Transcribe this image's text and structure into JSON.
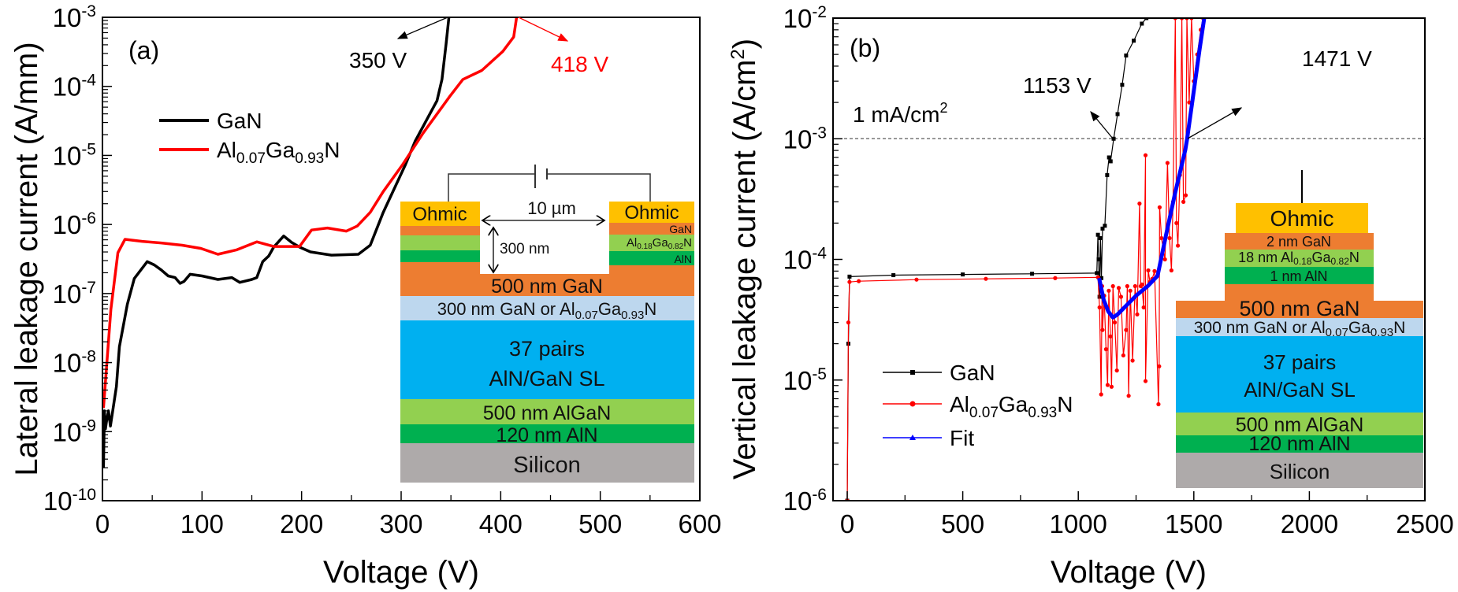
{
  "chart_data": [
    {
      "panel_label": "(a)",
      "type": "line",
      "xlabel": "Voltage (V)",
      "ylabel": "Lateral leakage current (A/mm)",
      "xlim": [
        0,
        600
      ],
      "ylim": [
        1e-10,
        0.001
      ],
      "yscale": "log",
      "grid": false,
      "legend_position": "upper-left",
      "xticks": [
        "0",
        "100",
        "200",
        "300",
        "400",
        "500",
        "600"
      ],
      "yticks": [
        {
          "base": "10",
          "exp": "-10"
        },
        {
          "base": "10",
          "exp": "-9"
        },
        {
          "base": "10",
          "exp": "-8"
        },
        {
          "base": "10",
          "exp": "-7"
        },
        {
          "base": "10",
          "exp": "-6"
        },
        {
          "base": "10",
          "exp": "-5"
        },
        {
          "base": "10",
          "exp": "-4"
        },
        {
          "base": "10",
          "exp": "-3"
        }
      ],
      "series": [
        {
          "name_parts": [
            "GaN"
          ],
          "color": "#000000",
          "points": [
            [
              1,
              3e-10
            ],
            [
              2,
              2e-09
            ],
            [
              3,
              1.1e-09
            ],
            [
              4,
              1.4e-09
            ],
            [
              6,
              2e-09
            ],
            [
              8,
              1.2e-09
            ],
            [
              14,
              4.5e-09
            ],
            [
              17,
              1.7e-08
            ],
            [
              25,
              7e-08
            ],
            [
              32,
              1.65e-07
            ],
            [
              45,
              2.9e-07
            ],
            [
              52,
              2.6e-07
            ],
            [
              59,
              2.2e-07
            ],
            [
              66,
              1.8e-07
            ],
            [
              73,
              1.7e-07
            ],
            [
              78,
              1.4e-07
            ],
            [
              82,
              1.5e-07
            ],
            [
              88,
              1.9e-07
            ],
            [
              100,
              1.8e-07
            ],
            [
              116,
              1.6e-07
            ],
            [
              130,
              1.7e-07
            ],
            [
              138,
              1.45e-07
            ],
            [
              150,
              1.6e-07
            ],
            [
              155,
              1.7e-07
            ],
            [
              161,
              2.9e-07
            ],
            [
              167,
              3.5e-07
            ],
            [
              172,
              4.7e-07
            ],
            [
              182,
              6.8e-07
            ],
            [
              190,
              5.5e-07
            ],
            [
              198,
              4.7e-07
            ],
            [
              209,
              4e-07
            ],
            [
              230,
              3.6e-07
            ],
            [
              257,
              3.7e-07
            ],
            [
              269,
              5e-07
            ],
            [
              282,
              1.5e-06
            ],
            [
              304,
              7.2e-06
            ],
            [
              314,
              1.6e-05
            ],
            [
              330,
              4.3e-05
            ],
            [
              336,
              6.2e-05
            ],
            [
              341,
              0.000126
            ],
            [
              345,
              0.0004
            ],
            [
              348,
              0.001
            ]
          ]
        },
        {
          "name_parts": [
            "Al",
            "0.07",
            "Ga",
            "0.93",
            "N"
          ],
          "color": "#FF0000",
          "points": [
            [
              1,
              2.2e-09
            ],
            [
              8.5,
              5.9e-08
            ],
            [
              15.5,
              3.9e-07
            ],
            [
              22.6,
              6.1e-07
            ],
            [
              40,
              5.7e-07
            ],
            [
              59,
              5.4e-07
            ],
            [
              80,
              5e-07
            ],
            [
              99,
              4.5e-07
            ],
            [
              116,
              3.7e-07
            ],
            [
              135,
              4.3e-07
            ],
            [
              155,
              5.6e-07
            ],
            [
              172,
              4.8e-07
            ],
            [
              198,
              4.8e-07
            ],
            [
              210,
              8.3e-07
            ],
            [
              226,
              8.9e-07
            ],
            [
              245,
              8e-07
            ],
            [
              256,
              9.5e-07
            ],
            [
              269,
              1.5e-06
            ],
            [
              282,
              3e-06
            ],
            [
              301,
              7.2e-06
            ],
            [
              322,
              2.1e-05
            ],
            [
              349,
              7.2e-05
            ],
            [
              362,
              0.000126
            ],
            [
              381,
              0.00017
            ],
            [
              402,
              0.00032
            ],
            [
              413,
              0.00052
            ],
            [
              416,
              0.001
            ]
          ]
        }
      ],
      "annotations": [
        {
          "text": "350 V",
          "color": "#000000",
          "voltage": 350
        },
        {
          "text": "418 V",
          "color": "#FF0000",
          "voltage": 418
        }
      ]
    },
    {
      "panel_label": "(b)",
      "type": "line",
      "xlabel": "Voltage (V)",
      "ylabel_parts": [
        "Vertical leakage current (A/cm",
        "2",
        ")"
      ],
      "xlim": [
        -60,
        2500
      ],
      "ylim": [
        1e-06,
        0.01
      ],
      "yscale": "log",
      "grid": false,
      "legend_position": "lower-left",
      "xticks": [
        "0",
        "500",
        "1000",
        "1500",
        "2000",
        "2500"
      ],
      "yticks": [
        {
          "base": "10",
          "exp": "-6"
        },
        {
          "base": "10",
          "exp": "-5"
        },
        {
          "base": "10",
          "exp": "-4"
        },
        {
          "base": "10",
          "exp": "-3"
        },
        {
          "base": "10",
          "exp": "-2"
        }
      ],
      "reference_line": {
        "value": 0.001,
        "label_parts": [
          "1 mA/cm",
          "2"
        ]
      },
      "series": [
        {
          "name_parts": [
            "GaN"
          ],
          "color": "#000000",
          "marker": "square",
          "points": [
            [
              0,
              1e-06
            ],
            [
              5,
              2e-05
            ],
            [
              10,
              7.2e-05
            ],
            [
              200,
              7.4e-05
            ],
            [
              500,
              7.5e-05
            ],
            [
              800,
              7.6e-05
            ],
            [
              1080,
              7.7e-05
            ],
            [
              1085,
              0.00016
            ],
            [
              1088,
              0.0001
            ],
            [
              1092,
              4.9e-05
            ],
            [
              1096,
              0.00015
            ],
            [
              1100,
              7e-05
            ],
            [
              1105,
              0.00018
            ],
            [
              1115,
              0.00019
            ],
            [
              1125,
              0.0005
            ],
            [
              1133,
              0.0007
            ],
            [
              1140,
              0.00065
            ],
            [
              1153,
              0.001
            ],
            [
              1170,
              0.0016
            ],
            [
              1190,
              0.0028
            ],
            [
              1207,
              0.0049
            ],
            [
              1240,
              0.0065
            ],
            [
              1275,
              0.009
            ],
            [
              1295,
              0.01
            ]
          ]
        },
        {
          "name_parts": [
            "Al",
            "0.07",
            "Ga",
            "0.93",
            "N"
          ],
          "color": "#FF0000",
          "marker": "circle",
          "points": [
            [
              0,
              1e-06
            ],
            [
              5,
              3e-05
            ],
            [
              10,
              6.5e-05
            ],
            [
              50,
              6.6e-05
            ],
            [
              300,
              6.8e-05
            ],
            [
              600,
              6.9e-05
            ],
            [
              900,
              7e-05
            ],
            [
              1085,
              7.1e-05
            ],
            [
              1092,
              4e-05
            ],
            [
              1099,
              7.6e-06
            ],
            [
              1103,
              6e-05
            ],
            [
              1105,
              2.6e-05
            ],
            [
              1112,
              5e-05
            ],
            [
              1120,
              1.8e-05
            ],
            [
              1127,
              9.1e-06
            ],
            [
              1132,
              5.5e-05
            ],
            [
              1139,
              2.3e-05
            ],
            [
              1144,
              8.8e-06
            ],
            [
              1150,
              6e-05
            ],
            [
              1158,
              3e-05
            ],
            [
              1167,
              1.2e-05
            ],
            [
              1175,
              5.8e-05
            ],
            [
              1185,
              4.9e-05
            ],
            [
              1195,
              1.6e-05
            ],
            [
              1207,
              2.6e-05
            ],
            [
              1212,
              6e-05
            ],
            [
              1218,
              7.4e-06
            ],
            [
              1225,
              5.5e-05
            ],
            [
              1235,
              1.45e-05
            ],
            [
              1246,
              6e-05
            ],
            [
              1255,
              3.5e-05
            ],
            [
              1265,
              0.00029
            ],
            [
              1270,
              6e-05
            ],
            [
              1275,
              6.2e-05
            ],
            [
              1283,
              4e-05
            ],
            [
              1291,
              0.00073
            ],
            [
              1291,
              9.8e-06
            ],
            [
              1303,
              8.1e-05
            ],
            [
              1310,
              6.5e-05
            ],
            [
              1320,
              6.9e-05
            ],
            [
              1330,
              8e-05
            ],
            [
              1347,
              6.3e-06
            ],
            [
              1350,
              1.3e-05
            ],
            [
              1352,
              0.00027
            ],
            [
              1360,
              0.00015
            ],
            [
              1375,
              0.0001
            ],
            [
              1386,
              0.00063
            ],
            [
              1395,
              0.00015
            ],
            [
              1403,
              8.1e-05
            ],
            [
              1410,
              0.0003
            ],
            [
              1420,
              0.01
            ],
            [
              1425,
              0.0002
            ],
            [
              1431,
              0.00013
            ],
            [
              1440,
              0.0005
            ],
            [
              1448,
              0.01
            ],
            [
              1455,
              0.0003
            ],
            [
              1465,
              0.00034
            ],
            [
              1470,
              0.01
            ],
            [
              1480,
              0.002
            ],
            [
              1490,
              0.01
            ],
            [
              1500,
              0.003
            ],
            [
              1515,
              0.005
            ],
            [
              1530,
              0.008
            ],
            [
              1540,
              0.01
            ]
          ]
        },
        {
          "name_parts": [
            "Fit"
          ],
          "color": "#0000FF",
          "marker": "triangle",
          "points": [
            [
              1090,
              7e-05
            ],
            [
              1110,
              4.6e-05
            ],
            [
              1130,
              3.7e-05
            ],
            [
              1150,
              3.3e-05
            ],
            [
              1170,
              3.5e-05
            ],
            [
              1200,
              4e-05
            ],
            [
              1250,
              5e-05
            ],
            [
              1300,
              6e-05
            ],
            [
              1343,
              7.3e-05
            ],
            [
              1380,
              0.00016
            ],
            [
              1420,
              0.00036
            ],
            [
              1463,
              0.00081
            ],
            [
              1471,
              0.001
            ],
            [
              1500,
              0.0025
            ],
            [
              1525,
              0.0055
            ],
            [
              1545,
              0.01
            ]
          ]
        }
      ],
      "annotations": [
        {
          "text": "1153 V",
          "color": "#000000",
          "voltage": 1153
        },
        {
          "text": "1471 V",
          "color": "#000000",
          "voltage": 1471
        }
      ]
    }
  ],
  "inset_a": {
    "ohmic_left": "Ohmic",
    "ohmic_right": "Ohmic",
    "gan_cap": "GaN",
    "barrier": [
      "Al",
      "0.18",
      "Ga",
      "0.82",
      "N"
    ],
    "aln": "AlN",
    "spacing": "10 µm",
    "depth": "300 nm",
    "channel": "500 nm GaN",
    "buffer": [
      "300 nm GaN or Al",
      "0.07",
      "Ga",
      "0.93",
      "N"
    ],
    "sl": [
      "37 pairs",
      "AlN/GaN SL"
    ],
    "algan": "500 nm AlGaN",
    "aln_nuc": "120 nm AlN",
    "substrate": "Silicon"
  },
  "inset_b": {
    "ohmic": "Ohmic",
    "gan_cap": "2 nm GaN",
    "barrier": [
      "18 nm Al",
      "0.18",
      "Ga",
      "0.82",
      "N"
    ],
    "aln": "1 nm AlN",
    "channel": "500 nm GaN",
    "buffer": [
      "300 nm GaN or Al",
      "0.07",
      "Ga",
      "0.93",
      "N"
    ],
    "sl": [
      "37 pairs",
      "AlN/GaN SL"
    ],
    "algan": "500 nm AlGaN",
    "aln_nuc": "120 nm AlN",
    "substrate": "Silicon"
  },
  "layer_colors": {
    "ohmic": "#FFC000",
    "gan": "#ED7D31",
    "algan_barrier": "#92D050",
    "aln": "#00B050",
    "buffer": "#BDD7EE",
    "superlattice": "#00B0F0",
    "substrate": "#AEAAAA"
  }
}
